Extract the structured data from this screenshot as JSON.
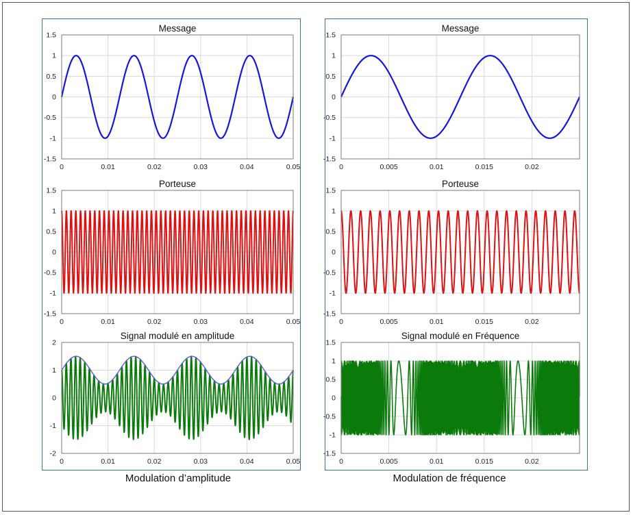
{
  "captions": {
    "left": "Modulation d’amplitude",
    "right": "Modulation de fréquence"
  },
  "colors": {
    "message": "#1515e0",
    "carrier": "#e01010",
    "am": "#0a7a0a",
    "envelope": "#5a5ae0",
    "grid": "#d8d8d8",
    "axis": "#333333"
  },
  "chart_data": [
    {
      "id": "am_message",
      "type": "line",
      "title": "Message",
      "xlim": [
        0,
        0.05
      ],
      "ylim": [
        -1.5,
        1.5
      ],
      "xticks": [
        "0",
        "0.01",
        "0.02",
        "0.03",
        "0.04",
        "0.05"
      ],
      "yticks": [
        "1.5",
        "1",
        "0.5",
        "0",
        "-0.5",
        "-1",
        "-1.5"
      ],
      "grid": true,
      "series": [
        {
          "function": "sin",
          "amplitude": 1,
          "frequency_hz": 80,
          "x_range": [
            0,
            0.05
          ]
        }
      ]
    },
    {
      "id": "am_carrier",
      "type": "line",
      "title": "Porteuse",
      "xlim": [
        0,
        0.05
      ],
      "ylim": [
        -1.5,
        1.5
      ],
      "xticks": [
        "0",
        "0.01",
        "0.02",
        "0.03",
        "0.04",
        "0.05"
      ],
      "yticks": [
        "1.5",
        "1",
        "0.5",
        "0",
        "-0.5",
        "-1",
        "-1.5"
      ],
      "grid": true,
      "series": [
        {
          "function": "cos",
          "amplitude": 1,
          "frequency_hz": 980,
          "x_range": [
            0,
            0.05
          ]
        }
      ]
    },
    {
      "id": "am_signal",
      "type": "line",
      "title": "Signal modulé en amplitude",
      "xlim": [
        0,
        0.05
      ],
      "ylim": [
        -2,
        2
      ],
      "xticks": [
        "0",
        "0.01",
        "0.02",
        "0.03",
        "0.04",
        "0.05"
      ],
      "yticks": [
        "2",
        "1",
        "0",
        "-1",
        "-2"
      ],
      "grid": true,
      "series": [
        {
          "function": "am",
          "message_hz": 80,
          "carrier_hz": 1000,
          "modulation_index": 0.5,
          "offset": 1,
          "x_range": [
            0,
            0.05
          ]
        },
        {
          "function": "envelope",
          "message_hz": 80,
          "modulation_index": 0.5,
          "offset": 1,
          "x_range": [
            0,
            0.05
          ]
        }
      ]
    },
    {
      "id": "fm_message",
      "type": "line",
      "title": "Message",
      "xlim": [
        0,
        0.025
      ],
      "ylim": [
        -1.5,
        1.5
      ],
      "xticks": [
        "0",
        "0.005",
        "0.01",
        "0.015",
        "0.02"
      ],
      "yticks": [
        "1.5",
        "1",
        "0.5",
        "0",
        "-0.5",
        "-1",
        "-1.5"
      ],
      "grid": true,
      "series": [
        {
          "function": "sin",
          "amplitude": 1,
          "frequency_hz": 80,
          "x_range": [
            0,
            0.025
          ]
        }
      ]
    },
    {
      "id": "fm_carrier",
      "type": "line",
      "title": "Porteuse",
      "xlim": [
        0,
        0.025
      ],
      "ylim": [
        -1.5,
        1.5
      ],
      "xticks": [
        "0",
        "0.005",
        "0.01",
        "0.015",
        "0.02"
      ],
      "yticks": [
        "1.5",
        "1",
        "0.5",
        "0",
        "-0.5",
        "-1",
        "-1.5"
      ],
      "grid": true,
      "series": [
        {
          "function": "cos",
          "amplitude": 1,
          "frequency_hz": 980,
          "x_range": [
            0,
            0.025
          ]
        }
      ]
    },
    {
      "id": "fm_signal",
      "type": "line",
      "title": "Signal modulé en Fréquence",
      "xlim": [
        0,
        0.025
      ],
      "ylim": [
        -1.5,
        1.5
      ],
      "xticks": [
        "0",
        "0.005",
        "0.01",
        "0.015",
        "0.02"
      ],
      "yticks": [
        "1.5",
        "1",
        "0.5",
        "0",
        "-0.5",
        "-1",
        "-1.5"
      ],
      "grid": true,
      "series": [
        {
          "function": "fm",
          "carrier_hz": 2000,
          "message_hz": 80,
          "frequency_deviation_hz": 1900,
          "x_range": [
            0,
            0.025
          ]
        }
      ]
    }
  ]
}
